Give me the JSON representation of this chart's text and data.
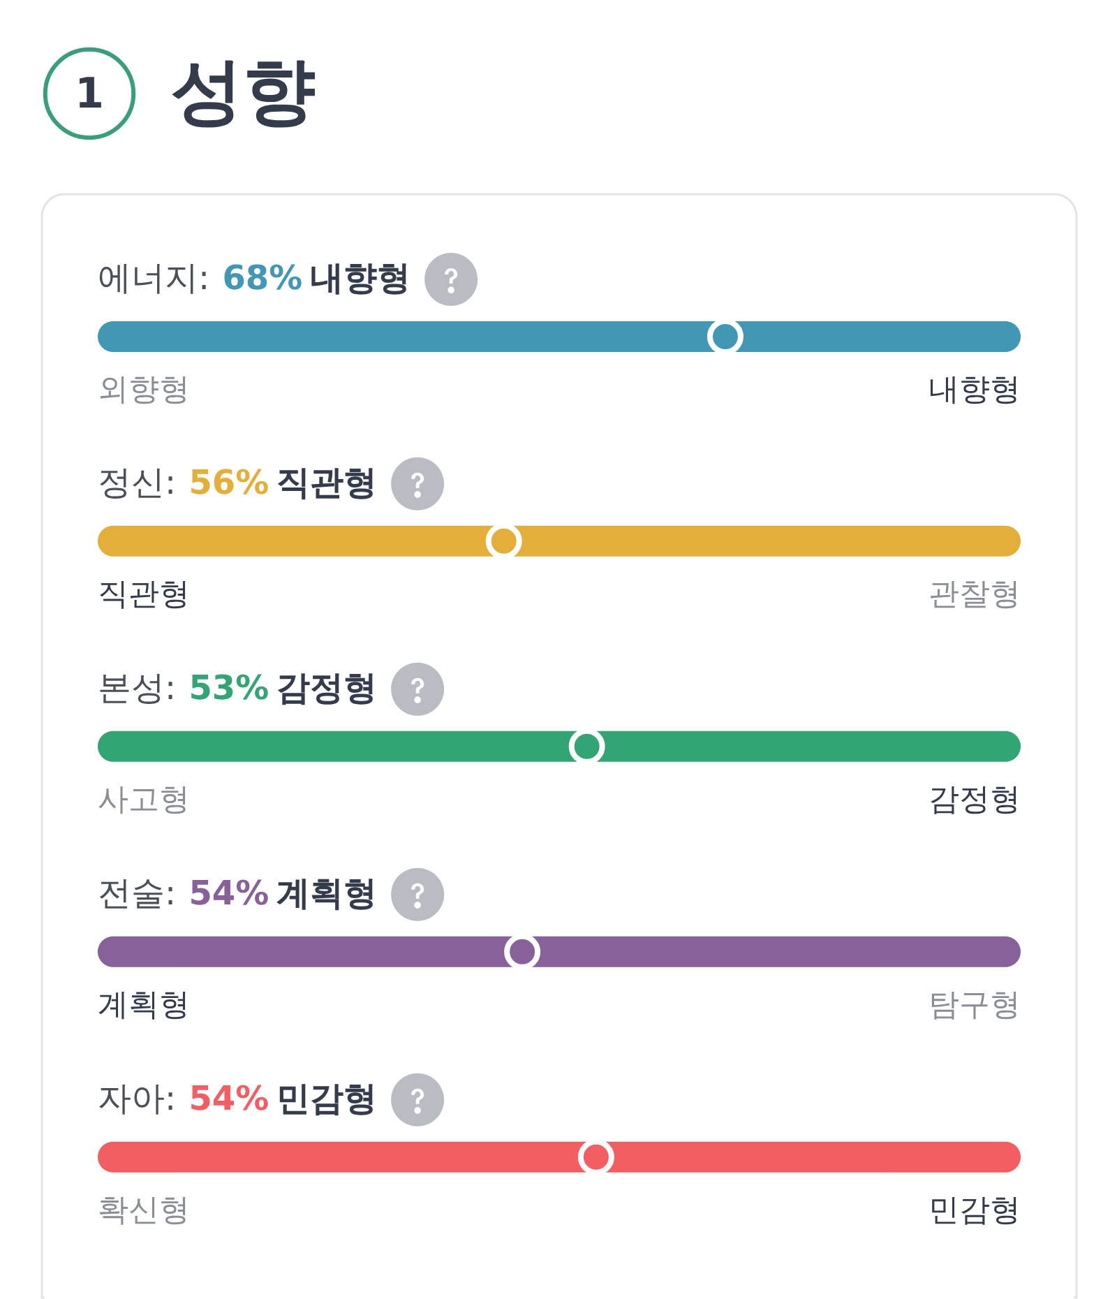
{
  "chart_data": [
    {
      "type": "other",
      "title": "성향",
      "annotations": [
        "1"
      ]
    },
    {
      "type": "other",
      "title": "에너지:",
      "categories": [
        "내향형"
      ],
      "values": [
        68
      ],
      "value_labels": [
        "68%"
      ],
      "colors": [
        "#4298b4"
      ],
      "annotations": [
        "외향형",
        "내향형"
      ]
    },
    {
      "type": "other",
      "title": "정신:",
      "categories": [
        "직관형"
      ],
      "values": [
        56
      ],
      "value_labels": [
        "56%"
      ],
      "colors": [
        "#e4ae3a"
      ],
      "annotations": [
        "직관형",
        "관찰형"
      ]
    },
    {
      "type": "other",
      "title": "본성:",
      "categories": [
        "감정형"
      ],
      "values": [
        53
      ],
      "value_labels": [
        "53%"
      ],
      "colors": [
        "#33a474"
      ],
      "annotations": [
        "사고형",
        "감정형"
      ]
    },
    {
      "type": "other",
      "title": "전술:",
      "categories": [
        "계획형"
      ],
      "values": [
        54
      ],
      "value_labels": [
        "54%"
      ],
      "colors": [
        "#88619a"
      ],
      "annotations": [
        "계획형",
        "탐구형"
      ]
    },
    {
      "type": "other",
      "title": "자아:",
      "categories": [
        "민감형"
      ],
      "values": [
        54
      ],
      "value_labels": [
        "54%"
      ],
      "colors": [
        "#f25e62"
      ],
      "annotations": [
        "확신형",
        "민감형"
      ]
    }
  ]
}
